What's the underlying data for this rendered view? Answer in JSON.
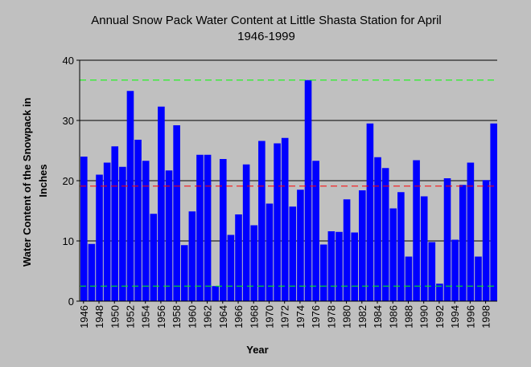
{
  "chart_data": {
    "type": "bar",
    "title": "Annual Snow Pack Water Content at Little Shasta Station for April",
    "subtitle": "1946-1999",
    "xlabel": "Year",
    "ylabel": "Water Content of the Snowpack in Inches",
    "ylim": [
      0,
      40
    ],
    "yticks": [
      0,
      10,
      20,
      30,
      40
    ],
    "grid": true,
    "x": [
      1946,
      1947,
      1948,
      1949,
      1950,
      1951,
      1952,
      1953,
      1954,
      1955,
      1956,
      1957,
      1958,
      1959,
      1960,
      1961,
      1962,
      1963,
      1964,
      1965,
      1966,
      1967,
      1968,
      1969,
      1970,
      1971,
      1972,
      1973,
      1974,
      1975,
      1976,
      1977,
      1978,
      1979,
      1980,
      1981,
      1982,
      1983,
      1984,
      1985,
      1986,
      1987,
      1988,
      1989,
      1990,
      1991,
      1992,
      1993,
      1994,
      1995,
      1996,
      1997,
      1998,
      1999
    ],
    "xtick_labels": [
      "1946",
      "1948",
      "1950",
      "1952",
      "1954",
      "1956",
      "1958",
      "1960",
      "1962",
      "1964",
      "1966",
      "1968",
      "1970",
      "1972",
      "1974",
      "1976",
      "1978",
      "1980",
      "1982",
      "1984",
      "1986",
      "1988",
      "1990",
      "1992",
      "1994",
      "1996",
      "1998"
    ],
    "values": [
      24.0,
      9.5,
      21.0,
      23.0,
      25.7,
      22.3,
      34.9,
      26.8,
      23.3,
      14.5,
      32.3,
      21.7,
      29.2,
      9.3,
      14.9,
      24.3,
      24.3,
      2.5,
      23.6,
      11.0,
      14.4,
      22.7,
      12.6,
      26.6,
      16.2,
      26.2,
      27.1,
      15.7,
      18.5,
      36.7,
      23.3,
      9.4,
      11.6,
      11.5,
      16.9,
      11.4,
      18.4,
      29.5,
      23.9,
      22.1,
      15.4,
      18.1,
      7.4,
      23.4,
      17.4,
      9.8,
      2.9,
      20.4,
      10.2,
      19.3,
      23.0,
      7.4,
      20.1,
      29.5
    ],
    "reference_lines": [
      {
        "value": 36.7,
        "color": "#00ff00",
        "style": "dashed"
      },
      {
        "value": 19.1,
        "color": "#ff0000",
        "style": "dashed"
      },
      {
        "value": 2.5,
        "color": "#00ff00",
        "style": "dashed"
      }
    ],
    "colors": {
      "bar": "#0000ff",
      "background": "#c0c0c0",
      "plot_background": "#c0c0c0",
      "grid": "#000000",
      "axis": "#000000"
    }
  }
}
